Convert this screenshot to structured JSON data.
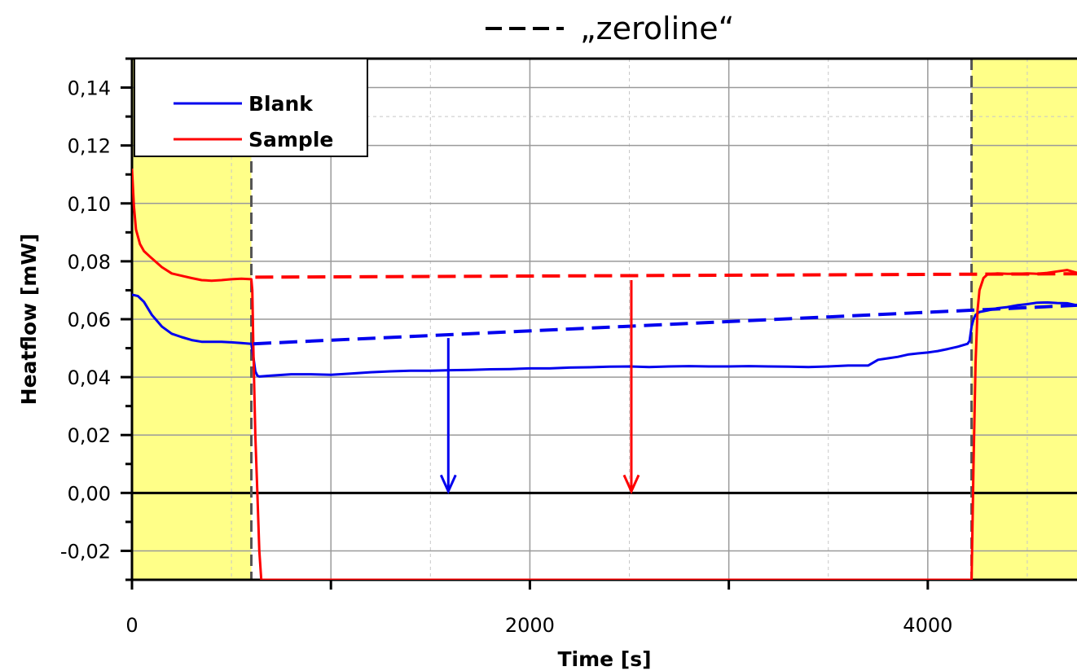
{
  "chart_data": {
    "type": "line",
    "header_annotation": "„zeroline“",
    "xlabel": "Time [s]",
    "ylabel": "Heatflow [mW]",
    "xlim": [
      0,
      4750
    ],
    "ylim": [
      -0.03,
      0.15
    ],
    "x_major_ticks": [
      0,
      1000,
      2000,
      3000,
      4000
    ],
    "x_tick_labels": [
      {
        "value": 0,
        "label": "0"
      },
      {
        "value": 2000,
        "label": "2000"
      },
      {
        "value": 4000,
        "label": "4000"
      }
    ],
    "y_major_ticks": [
      -0.02,
      0.0,
      0.02,
      0.04,
      0.06,
      0.08,
      0.1,
      0.12,
      0.14
    ],
    "y_tick_labels": [
      "-0,02",
      "0,00",
      "0,02",
      "0,04",
      "0,06",
      "0,08",
      "0,10",
      "0,12",
      "0,14"
    ],
    "y_minor_ticks": [
      -0.03,
      -0.01,
      0.01,
      0.03,
      0.05,
      0.07,
      0.09,
      0.11,
      0.13,
      0.15
    ],
    "grid_major_x": [
      1000,
      2000,
      3000,
      4000
    ],
    "grid_minor_x": [
      500,
      1500,
      2500,
      3500,
      4500
    ],
    "grid_major_y": [
      -0.02,
      0.02,
      0.04,
      0.06,
      0.08,
      0.1,
      0.12,
      0.14
    ],
    "grid_minor_y": [
      0.13,
      0.15
    ],
    "highlight_regions": [
      {
        "x_start": 0,
        "x_end": 600,
        "color": "#ffff88"
      },
      {
        "x_start": 4220,
        "x_end": 4750,
        "color": "#ffff88"
      }
    ],
    "boundary_lines": [
      600,
      4220
    ],
    "zero_line": 0,
    "legend": {
      "position": "top-left",
      "entries": [
        {
          "label": "Blank",
          "color": "#0000ee"
        },
        {
          "label": "Sample",
          "color": "#ff0000"
        }
      ]
    },
    "series": [
      {
        "name": "Blank",
        "color": "#0000ee",
        "x": [
          0,
          30,
          60,
          100,
          150,
          200,
          250,
          300,
          350,
          400,
          450,
          500,
          550,
          600,
          610,
          620,
          630,
          640,
          660,
          700,
          800,
          900,
          1000,
          1100,
          1200,
          1300,
          1400,
          1500,
          1600,
          1700,
          1800,
          1900,
          2000,
          2100,
          2200,
          2300,
          2400,
          2500,
          2600,
          2700,
          2800,
          2900,
          3000,
          3100,
          3200,
          3300,
          3400,
          3500,
          3600,
          3700,
          3750,
          3800,
          3850,
          3900,
          3950,
          4000,
          4050,
          4100,
          4150,
          4200,
          4210,
          4220,
          4230,
          4240,
          4260,
          4300,
          4350,
          4400,
          4450,
          4500,
          4550,
          4600,
          4650,
          4700,
          4750
        ],
        "y": [
          0.0685,
          0.068,
          0.066,
          0.0615,
          0.0575,
          0.055,
          0.0538,
          0.0528,
          0.0522,
          0.0522,
          0.0522,
          0.052,
          0.0518,
          0.0515,
          0.047,
          0.042,
          0.0405,
          0.0402,
          0.0403,
          0.0405,
          0.041,
          0.041,
          0.0408,
          0.0412,
          0.0417,
          0.042,
          0.0422,
          0.0422,
          0.0424,
          0.0425,
          0.0427,
          0.0428,
          0.043,
          0.043,
          0.0433,
          0.0434,
          0.0436,
          0.0437,
          0.0435,
          0.0437,
          0.0438,
          0.0437,
          0.0437,
          0.0438,
          0.0437,
          0.0436,
          0.0435,
          0.0437,
          0.044,
          0.044,
          0.046,
          0.0465,
          0.047,
          0.0478,
          0.0482,
          0.0485,
          0.049,
          0.0497,
          0.0505,
          0.0515,
          0.0525,
          0.0575,
          0.06,
          0.0615,
          0.0625,
          0.063,
          0.0638,
          0.0642,
          0.0648,
          0.0652,
          0.0657,
          0.0658,
          0.0656,
          0.0655,
          0.0648
        ]
      },
      {
        "name": "Sample",
        "color": "#ff0000",
        "x": [
          0,
          10,
          20,
          40,
          60,
          100,
          150,
          200,
          250,
          300,
          350,
          400,
          450,
          500,
          550,
          600,
          605,
          610,
          620,
          630,
          640,
          650,
          4220,
          4230,
          4240,
          4250,
          4260,
          4280,
          4300,
          4350,
          4400,
          4450,
          4500,
          4550,
          4600,
          4650,
          4700,
          4750
        ],
        "y": [
          0.112,
          0.099,
          0.091,
          0.086,
          0.0835,
          0.081,
          0.078,
          0.0758,
          0.075,
          0.0742,
          0.0735,
          0.0733,
          0.0735,
          0.0738,
          0.074,
          0.0738,
          0.07,
          0.05,
          0.02,
          0.0,
          -0.02,
          -0.03,
          -0.03,
          0.01,
          0.045,
          0.063,
          0.07,
          0.0742,
          0.0755,
          0.0758,
          0.0757,
          0.0757,
          0.0758,
          0.0757,
          0.076,
          0.0765,
          0.077,
          0.076
        ]
      },
      {
        "name": "",
        "role": "zeroline-blank",
        "color": "#0000ee",
        "dashed": true,
        "x": [
          610,
          4750
        ],
        "y": [
          0.0515,
          0.0648
        ]
      },
      {
        "name": "",
        "role": "zeroline-sample",
        "color": "#ff0000",
        "dashed": true,
        "x": [
          620,
          4750
        ],
        "y": [
          0.0745,
          0.0757
        ]
      }
    ],
    "arrows": [
      {
        "color": "#0000ee",
        "x": 1590,
        "y_from": 0.0535,
        "y_to": 0.0
      },
      {
        "color": "#ff0000",
        "x": 2510,
        "y_from": 0.0735,
        "y_to": 0.0
      }
    ]
  }
}
